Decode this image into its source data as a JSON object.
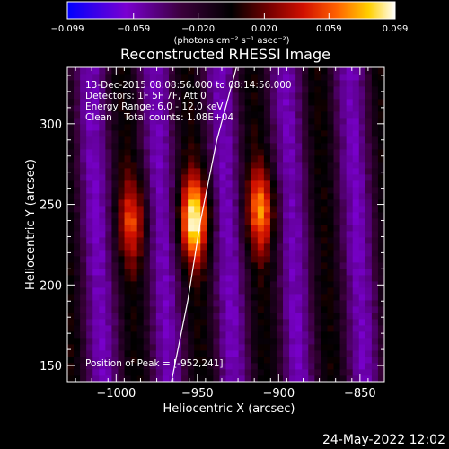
{
  "chart_data": {
    "type": "heatmap",
    "title": "Reconstructed RHESSI Image",
    "xlabel": "Heliocentric X (arcsec)",
    "ylabel": "Heliocentric Y (arcsec)",
    "xlim": [
      -1030,
      -835
    ],
    "ylim": [
      140,
      335
    ],
    "x_ticks": [
      -1000,
      -950,
      -900,
      -850
    ],
    "y_ticks": [
      150,
      200,
      250,
      300
    ],
    "x_tick_labels": [
      "−1000",
      "−950",
      "−900",
      "−850"
    ],
    "y_tick_labels": [
      "150",
      "200",
      "250",
      "300"
    ],
    "colorbar": {
      "range": [
        -0.099,
        0.099
      ],
      "ticks": [
        -0.099,
        -0.059,
        -0.02,
        0.02,
        0.059,
        0.099
      ],
      "tick_labels": [
        "−0.099",
        "−0.059",
        "−0.020",
        "0.020",
        "0.059",
        "0.099"
      ],
      "unit_label": "(photons cm⁻² s⁻¹ asec⁻²)",
      "colors": [
        "#0000ff",
        "#7a00d0",
        "#3a003a",
        "#000000",
        "#7a0000",
        "#d01000",
        "#ff6000",
        "#ffd000",
        "#ffffff"
      ]
    },
    "info_lines": [
      "13-Dec-2015 08:08:56.000 to 08:14:56.000",
      "Detectors: 1F 5F 7F, Att 0",
      "Energy Range: 6.0 - 12.0 keV",
      "Clean    Total counts: 1.08E+04"
    ],
    "peak_text": "Position of Peak = [-952,241]",
    "peak": [
      -952,
      241
    ],
    "limb_line": [
      [
        -966,
        140
      ],
      [
        -956,
        190
      ],
      [
        -948,
        240
      ],
      [
        -938,
        290
      ],
      [
        -926,
        335
      ]
    ],
    "intensity_sources": [
      {
        "x": -952,
        "y": 241,
        "amp": 0.099
      },
      {
        "x": -911,
        "y": 247,
        "amp": 0.07
      },
      {
        "x": -990,
        "y": 240,
        "amp": 0.055
      }
    ]
  },
  "footer": {
    "timestamp": "24-May-2022 12:02"
  }
}
